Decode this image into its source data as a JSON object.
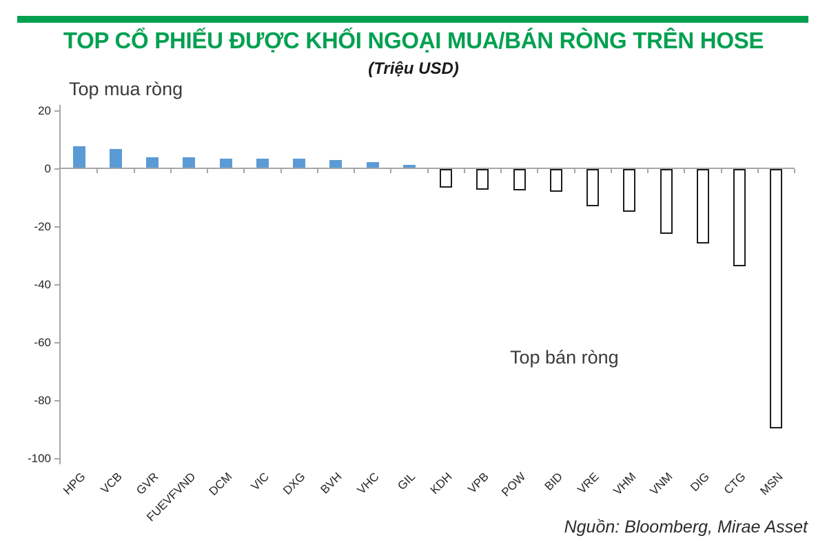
{
  "header": {
    "title": "TOP CỔ PHIẾU ĐƯỢC KHỐI NGOẠI MUA/BÁN RÒNG TRÊN HOSE",
    "subtitle": "(Triệu USD)"
  },
  "annotations": {
    "top_buy": "Top mua ròng",
    "top_sell": "Top bán ròng"
  },
  "footer": {
    "source": "Nguồn: Bloomberg, Mirae Asset"
  },
  "colors": {
    "accent_green": "#00a050",
    "positive_bar_fill": "#5b9bd5",
    "negative_bar_fill": "#ffffff",
    "negative_bar_border": "#1c1c1c",
    "axis_gray": "#a6a6a6"
  },
  "chart_data": {
    "type": "bar",
    "title": "TOP CỔ PHIẾU ĐƯỢC KHỐI NGOẠI MUA/BÁN RÒNG TRÊN HOSE",
    "subtitle": "(Triệu USD)",
    "xlabel": "",
    "ylabel": "Triệu USD",
    "categories": [
      "HPG",
      "VCB",
      "GVR",
      "FUEVFVND",
      "DCM",
      "VIC",
      "DXG",
      "BVH",
      "VHC",
      "GIL",
      "KDH",
      "VPB",
      "POW",
      "BID",
      "VRE",
      "VHM",
      "VNM",
      "DIG",
      "CTG",
      "MSN"
    ],
    "values": [
      7.9,
      6.9,
      4.0,
      4.0,
      3.6,
      3.6,
      3.6,
      3.1,
      2.4,
      1.4,
      -6.0,
      -6.7,
      -6.9,
      -7.3,
      -12.4,
      -14.2,
      -22.0,
      -25.2,
      -33.1,
      -89.0
    ],
    "positive_group_label": "Top mua ròng",
    "negative_group_label": "Top bán ròng",
    "ylim": [
      -100,
      20
    ],
    "yticks": [
      20,
      0,
      -20,
      -40,
      -60,
      -80,
      -100
    ],
    "ytick_labels": [
      "20",
      "0",
      "-20",
      "-40",
      "-60",
      "-80",
      "-100"
    ],
    "grid": false,
    "legend_position": "none",
    "source_note": "Nguồn: Bloomberg, Mirae Asset"
  }
}
